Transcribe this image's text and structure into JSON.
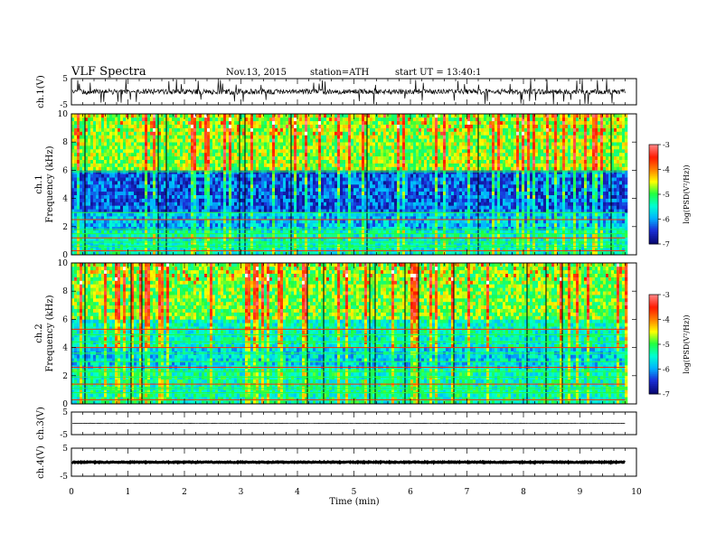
{
  "header": {
    "title": "VLF  Spectra",
    "date": "Nov.13, 2015",
    "station": "station=ATH",
    "start": "start  UT  =   13:40:1"
  },
  "chart_data": [
    {
      "type": "line",
      "name": "ch1-waveform",
      "ylabel": "ch.1(V)",
      "ylim": [
        -5,
        5
      ],
      "yticks": [
        "5",
        "-5"
      ],
      "baseline_v": 0.0,
      "noise_amplitude_v": 1.0,
      "xlim": [
        0,
        10
      ],
      "data_extent_min": 9.8
    },
    {
      "type": "heatmap",
      "name": "ch1-spectrogram",
      "ylabel": [
        "ch.1",
        "Frequency  (kHz)"
      ],
      "ylim": [
        0,
        10
      ],
      "yticks": [
        "0",
        "2",
        "4",
        "6",
        "8",
        "10"
      ],
      "xlim": [
        0,
        10
      ],
      "data_extent_min": 9.8,
      "colorbar": {
        "label": "log(PSD(V²/Hz))",
        "range": [
          -7,
          -3
        ],
        "ticks": [
          "-3",
          "-4",
          "-5",
          "-6",
          "-7"
        ]
      },
      "persistent_lines_khz": [
        0.3,
        0.6,
        0.9,
        1.2,
        1.5,
        1.8,
        2.5,
        3.0,
        5.9
      ]
    },
    {
      "type": "heatmap",
      "name": "ch2-spectrogram",
      "ylabel": [
        "ch.2",
        "Frequency  (kHz)"
      ],
      "ylim": [
        0,
        10
      ],
      "yticks": [
        "0",
        "2",
        "4",
        "6",
        "8",
        "10"
      ],
      "xlim": [
        0,
        10
      ],
      "data_extent_min": 9.8,
      "colorbar": {
        "label": "log(PSD(V²/Hz))",
        "range": [
          -7,
          -3
        ],
        "ticks": [
          "-3",
          "-4",
          "-5",
          "-6",
          "-7"
        ]
      },
      "persistent_lines_khz": [
        0.3,
        0.8,
        1.1,
        1.4,
        1.9,
        2.3,
        2.6,
        3.0,
        3.6,
        4.0,
        4.4,
        4.9,
        5.3
      ]
    },
    {
      "type": "line",
      "name": "ch3-waveform",
      "ylabel": "ch.3(V)",
      "ylim": [
        -5,
        5
      ],
      "yticks": [
        "5",
        "-5"
      ],
      "baseline_v": 0.0,
      "noise_amplitude_v": 0.1,
      "xlim": [
        0,
        10
      ],
      "data_extent_min": 9.8
    },
    {
      "type": "line",
      "name": "ch4-waveform",
      "ylabel": "ch.4(V)",
      "ylim": [
        -5,
        5
      ],
      "yticks": [
        "5",
        "-5"
      ],
      "baseline_v": 0.0,
      "noise_amplitude_v": 0.15,
      "xlim": [
        0,
        10
      ],
      "data_extent_min": 9.8
    }
  ],
  "xaxis": {
    "label": "Time  (min)",
    "ticks": [
      "0",
      "1",
      "2",
      "3",
      "4",
      "5",
      "6",
      "7",
      "8",
      "9",
      "10"
    ]
  },
  "colors": {
    "colormap": [
      "#000000",
      "#0a0a7a",
      "#1a2fd8",
      "#00b4ff",
      "#00ffd2",
      "#20ff40",
      "#ffff00",
      "#ff8000",
      "#ff1a00",
      "#ff8080",
      "#ffffff"
    ]
  }
}
